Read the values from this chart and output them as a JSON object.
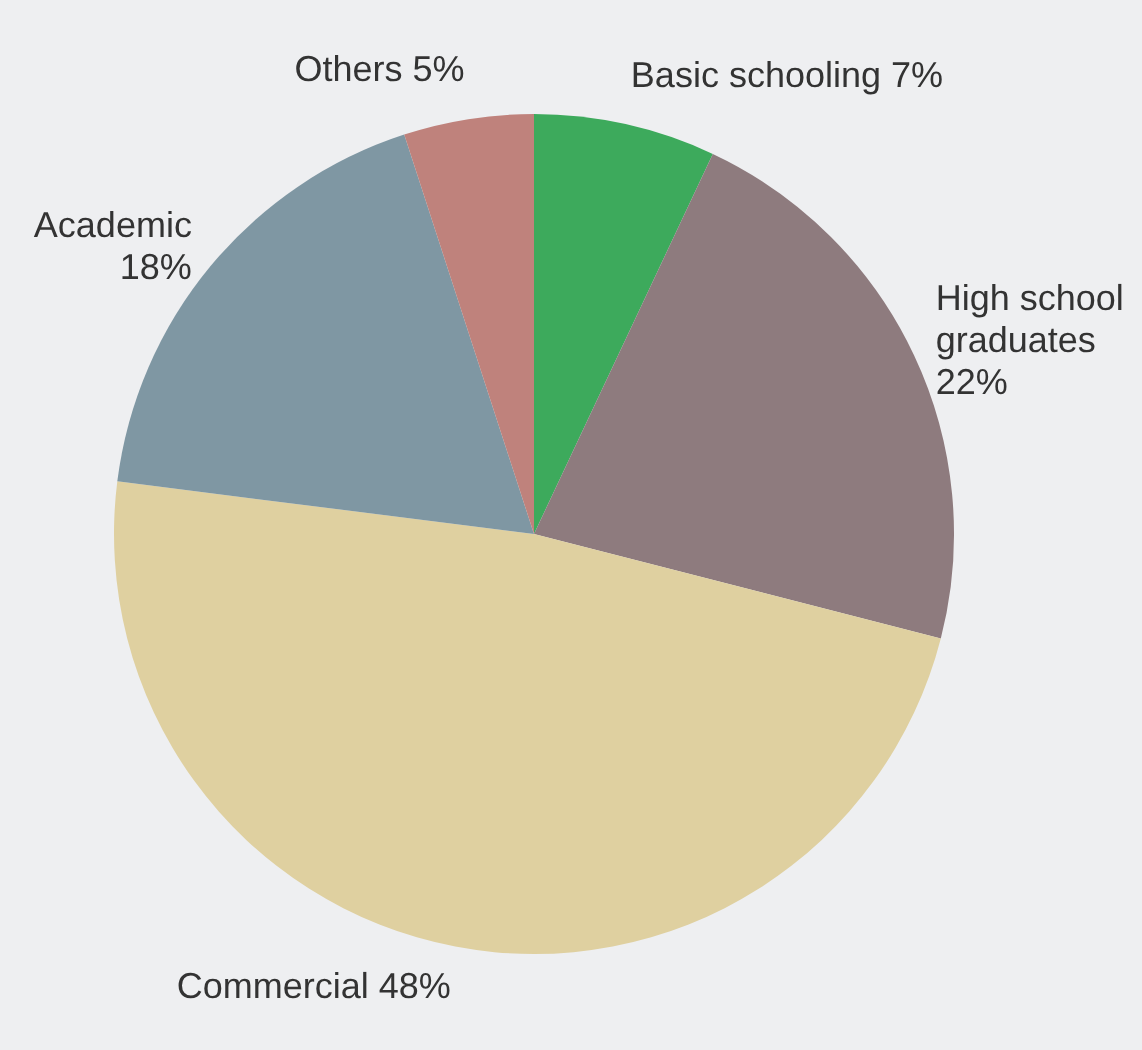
{
  "chart_data": {
    "type": "pie",
    "categories": [
      "Basic schooling",
      "High school graduates",
      "Commercial",
      "Academic",
      "Others"
    ],
    "values": [
      7,
      22,
      48,
      18,
      5
    ],
    "value_labels": [
      "7%",
      "22%",
      "48%",
      "18%",
      "5%"
    ],
    "colors": [
      "#3daa5c",
      "#8e7b7e",
      "#dfd0a0",
      "#7f97a3",
      "#bf827c"
    ],
    "legend": false
  }
}
